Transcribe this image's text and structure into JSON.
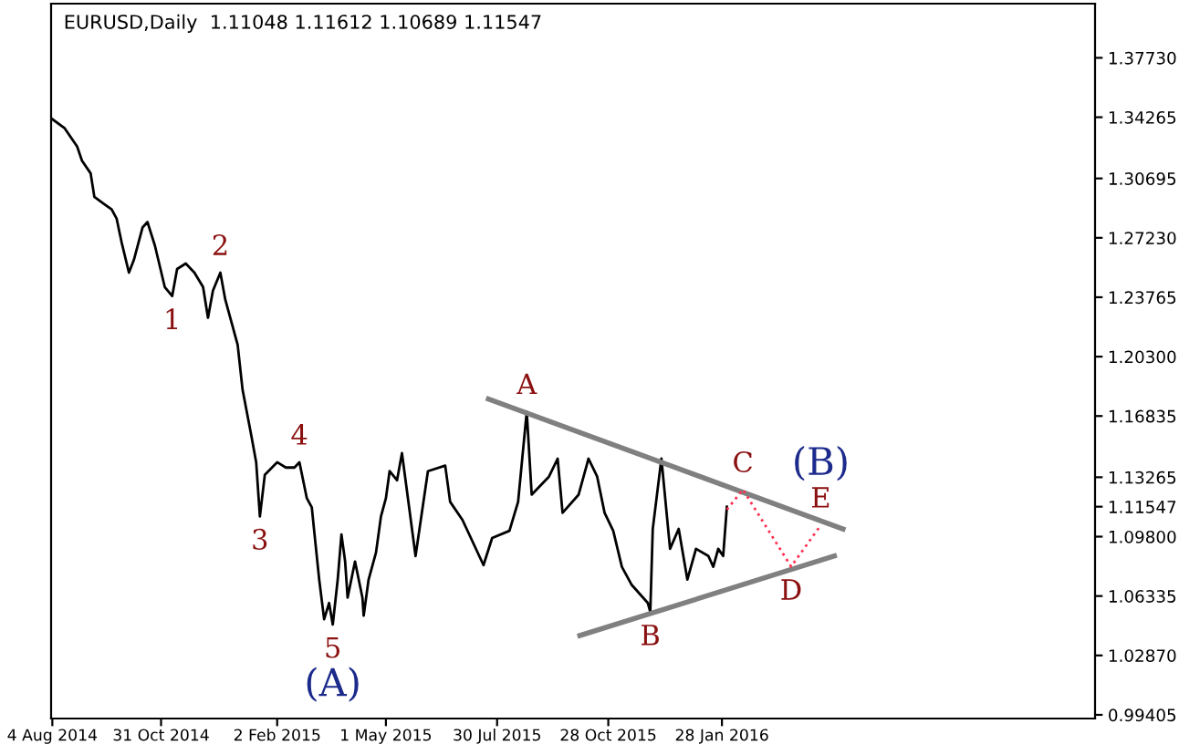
{
  "chart_data": {
    "type": "line",
    "title": "EURUSD,Daily  1.11048 1.11612 1.10689 1.11547",
    "series": [
      {
        "color": "#000000",
        "x": [
          "2014-08-04",
          "2014-08-14",
          "2014-08-24",
          "2014-08-28",
          "2014-09-04",
          "2014-09-07",
          "2014-09-15",
          "2014-09-21",
          "2014-09-25",
          "2014-09-29",
          "2014-10-05",
          "2014-10-09",
          "2014-10-16",
          "2014-10-20",
          "2014-10-26",
          "2014-11-03",
          "2014-11-09",
          "2014-11-13",
          "2014-11-20",
          "2014-11-27",
          "2014-12-04",
          "2014-12-08",
          "2014-12-12",
          "2014-12-18",
          "2014-12-22",
          "2014-12-26",
          "2015-01-01",
          "2015-01-05",
          "2015-01-12",
          "2015-01-16",
          "2015-01-19",
          "2015-01-23",
          "2015-02-02",
          "2015-02-09",
          "2015-02-16",
          "2015-02-20",
          "2015-02-26",
          "2015-03-02",
          "2015-03-05",
          "2015-03-08",
          "2015-03-12",
          "2015-03-16",
          "2015-03-19",
          "2015-03-23",
          "2015-03-26",
          "2015-03-29",
          "2015-03-31",
          "2015-04-06",
          "2015-04-12",
          "2015-04-13",
          "2015-04-17",
          "2015-04-23",
          "2015-04-27",
          "2015-05-01",
          "2015-05-04",
          "2015-05-10",
          "2015-05-14",
          "2015-05-25",
          "2015-06-04",
          "2015-06-18",
          "2015-06-22",
          "2015-07-02",
          "2015-07-19",
          "2015-07-26",
          "2015-08-09",
          "2015-08-16",
          "2015-08-23",
          "2015-08-27",
          "2015-09-10",
          "2015-09-17",
          "2015-09-21",
          "2015-10-04",
          "2015-10-12",
          "2015-10-19",
          "2015-10-25",
          "2015-11-01",
          "2015-11-08",
          "2015-11-16",
          "2015-11-29",
          "2015-12-01",
          "2015-12-03",
          "2015-12-10",
          "2015-12-17",
          "2015-12-24",
          "2015-12-31",
          "2016-01-07",
          "2016-01-17",
          "2016-01-21",
          "2016-01-25",
          "2016-01-29",
          "2016-02-01"
        ],
        "values": [
          1.3415,
          1.3362,
          1.3257,
          1.3173,
          1.3099,
          1.2962,
          1.292,
          1.2889,
          1.2836,
          1.2699,
          1.252,
          1.2594,
          1.2783,
          1.2815,
          1.2678,
          1.2436,
          1.2383,
          1.2541,
          1.2573,
          1.252,
          1.2436,
          1.2257,
          1.2415,
          1.252,
          1.2362,
          1.2257,
          1.2099,
          1.1836,
          1.1572,
          1.1414,
          1.1098,
          1.1341,
          1.1414,
          1.1383,
          1.1383,
          1.1414,
          1.1204,
          1.1151,
          1.094,
          1.073,
          1.0498,
          1.0593,
          1.0467,
          1.073,
          1.0993,
          1.0835,
          1.0624,
          1.0835,
          1.0624,
          1.0519,
          1.073,
          1.0888,
          1.1098,
          1.1204,
          1.1362,
          1.1309,
          1.1467,
          1.0867,
          1.1362,
          1.1394,
          1.1183,
          1.1077,
          1.0814,
          1.0972,
          1.1014,
          1.1183,
          1.1709,
          1.1225,
          1.133,
          1.1435,
          1.1119,
          1.1225,
          1.1435,
          1.133,
          1.1119,
          1.1014,
          1.0804,
          1.0698,
          1.0593,
          1.054,
          1.1025,
          1.1435,
          1.0909,
          1.1025,
          1.073,
          1.0909,
          1.0867,
          1.0804,
          1.0909,
          1.0867,
          1.11547
        ]
      },
      {
        "color": "#808080",
        "line_style": "solid",
        "x": [
          "2015-07-23",
          "2016-05-05"
        ],
        "values": [
          1.1783,
          1.1025
        ]
      },
      {
        "color": "#808080",
        "line_style": "solid",
        "x": [
          "2015-10-05",
          "2016-04-28"
        ],
        "values": [
          1.0403,
          1.0867
        ]
      },
      {
        "color": "#ff3050",
        "line_style": "dotted",
        "x": [
          "2016-02-01",
          "2016-02-14",
          "2016-03-24",
          "2016-04-17"
        ],
        "values": [
          1.1138,
          1.1254,
          1.0805,
          1.1047
        ]
      }
    ],
    "xlim": [
      "2014-08-03",
      "2016-11-25"
    ],
    "xticks": [
      {
        "value": "2014-08-04",
        "label": "4 Aug 2014"
      },
      {
        "value": "2014-10-31",
        "label": "31 Oct 2014"
      },
      {
        "value": "2015-02-02",
        "label": "2 Feb 2015"
      },
      {
        "value": "2015-05-01",
        "label": "1 May 2015"
      },
      {
        "value": "2015-07-30",
        "label": "30 Jul 2015"
      },
      {
        "value": "2015-10-28",
        "label": "28 Oct 2015"
      },
      {
        "value": "2016-01-28",
        "label": "28 Jan 2016"
      }
    ],
    "ylim": [
      0.9919,
      1.4089
    ],
    "yticks": [
      {
        "value": 0.99405,
        "label": "0.99405"
      },
      {
        "value": 1.0287,
        "label": "1.02870"
      },
      {
        "value": 1.06335,
        "label": "1.06335"
      },
      {
        "value": 1.098,
        "label": "1.09800"
      },
      {
        "value": 1.11547,
        "label": "1.11547"
      },
      {
        "value": 1.13265,
        "label": "1.13265"
      },
      {
        "value": 1.16835,
        "label": "1.16835"
      },
      {
        "value": 1.203,
        "label": "1.20300"
      },
      {
        "value": 1.23765,
        "label": "1.23765"
      },
      {
        "value": 1.2723,
        "label": "1.27230"
      },
      {
        "value": 1.30695,
        "label": "1.30695"
      },
      {
        "value": 1.34265,
        "label": "1.34265"
      },
      {
        "value": 1.3773,
        "label": "1.37730"
      }
    ],
    "grid": false,
    "annotations": [
      {
        "text": "1",
        "x": "2014-11-09",
        "y": 1.2383
      },
      {
        "text": "2",
        "x": "2014-12-18",
        "y": 1.252
      },
      {
        "text": "3",
        "x": "2015-01-19",
        "y": 1.1098
      },
      {
        "text": "4",
        "x": "2015-02-20",
        "y": 1.1414
      },
      {
        "text": "5",
        "x": "2015-03-19",
        "y": 1.0467
      },
      {
        "text": "(A)",
        "x": "2015-03-19",
        "y": 1.0467
      },
      {
        "text": "A",
        "x": "2015-08-23",
        "y": 1.1709
      },
      {
        "text": "B",
        "x": "2015-12-01",
        "y": 1.054
      },
      {
        "text": "C",
        "x": "2016-02-14",
        "y": 1.1254
      },
      {
        "text": "D",
        "x": "2016-03-24",
        "y": 1.0805
      },
      {
        "text": "E",
        "x": "2016-04-17",
        "y": 1.1047
      },
      {
        "text": "(B)",
        "x": "2016-04-17",
        "y": 1.1047
      }
    ]
  }
}
